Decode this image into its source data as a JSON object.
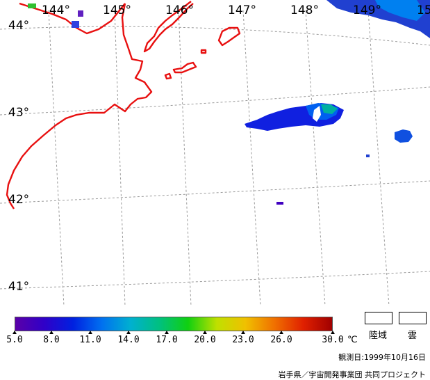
{
  "map": {
    "longitude_labels": [
      "144°",
      "145°",
      "146°",
      "147°",
      "148°",
      "149°",
      "15"
    ],
    "latitude_labels": [
      "44°",
      "43°",
      "42°",
      "41°"
    ],
    "colors": {
      "coastline": "#e81010",
      "graticule": "#9a9a9a"
    }
  },
  "colorbar": {
    "tick_labels": [
      "5.0",
      "8.0",
      "11.0",
      "14.0",
      "17.0",
      "20.0",
      "23.0",
      "26.0",
      "30.0"
    ],
    "unit": "℃",
    "colors": [
      "#5a00a8",
      "#3000c8",
      "#0020e0",
      "#0070f0",
      "#00b0d0",
      "#00c080",
      "#10d010",
      "#c0e000",
      "#f0c000",
      "#f07000",
      "#e02000",
      "#a00000"
    ]
  },
  "legend": {
    "land_label": "陸域",
    "cloud_label": "雲"
  },
  "observation_date": "観測日:1999年10月16日",
  "credit": "岩手県／宇宙開発事業団 共同プロジェクト"
}
